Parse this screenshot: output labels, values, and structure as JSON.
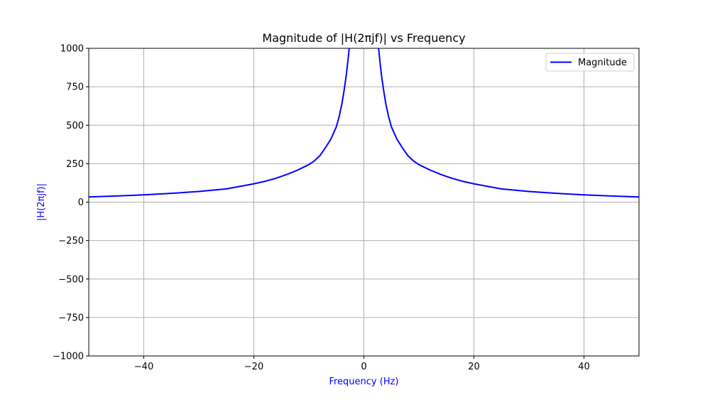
{
  "chart_data": {
    "type": "line",
    "title": "Magnitude of |H(2πjf)| vs Frequency",
    "xlabel": "Frequency (Hz)",
    "ylabel": "|H(2πjf)|",
    "xlim": [
      -50,
      50
    ],
    "ylim": [
      -1000,
      1000
    ],
    "xticks": [
      -40,
      -20,
      0,
      20,
      40
    ],
    "xtick_labels": [
      "−40",
      "−20",
      "0",
      "20",
      "40"
    ],
    "yticks": [
      -1000,
      -750,
      -500,
      -250,
      0,
      250,
      500,
      750,
      1000
    ],
    "ytick_labels": [
      "−1000",
      "−750",
      "−500",
      "−250",
      "0",
      "250",
      "500",
      "750",
      "1000"
    ],
    "grid": true,
    "legend_position": "top-right",
    "axis_label_color": "#0000ff",
    "series": [
      {
        "name": "Magnitude",
        "color": "#0000ff",
        "x": [
          -50,
          -45,
          -40,
          -35,
          -30,
          -25,
          -20,
          -18,
          -16,
          -14,
          -12,
          -10,
          -9,
          -8,
          -7,
          -6,
          -5,
          -4.5,
          -4,
          -3.6,
          -3.2,
          -2.9,
          -2.7,
          -2.5,
          -2.45,
          2.45,
          2.5,
          2.7,
          2.9,
          3.2,
          3.6,
          4,
          4.5,
          5,
          6,
          7,
          8,
          9,
          10,
          12,
          14,
          16,
          18,
          20,
          25,
          30,
          35,
          40,
          45,
          50
        ],
        "y": [
          33.7,
          40,
          47.5,
          57,
          69.5,
          86,
          119,
          135,
          155,
          180,
          209,
          244,
          268,
          302,
          353,
          410,
          490,
          555,
          637,
          725,
          825,
          920,
          990,
          1050,
          1070,
          1070,
          1050,
          990,
          920,
          825,
          725,
          637,
          555,
          490,
          410,
          353,
          302,
          268,
          244,
          209,
          180,
          155,
          135,
          119,
          86,
          69.5,
          57,
          47.5,
          40,
          33.7
        ]
      },
      {
        "name": "",
        "color": "#0000ff",
        "x": [
          -50,
          50
        ],
        "y": [
          -1000,
          -1000
        ]
      }
    ]
  }
}
